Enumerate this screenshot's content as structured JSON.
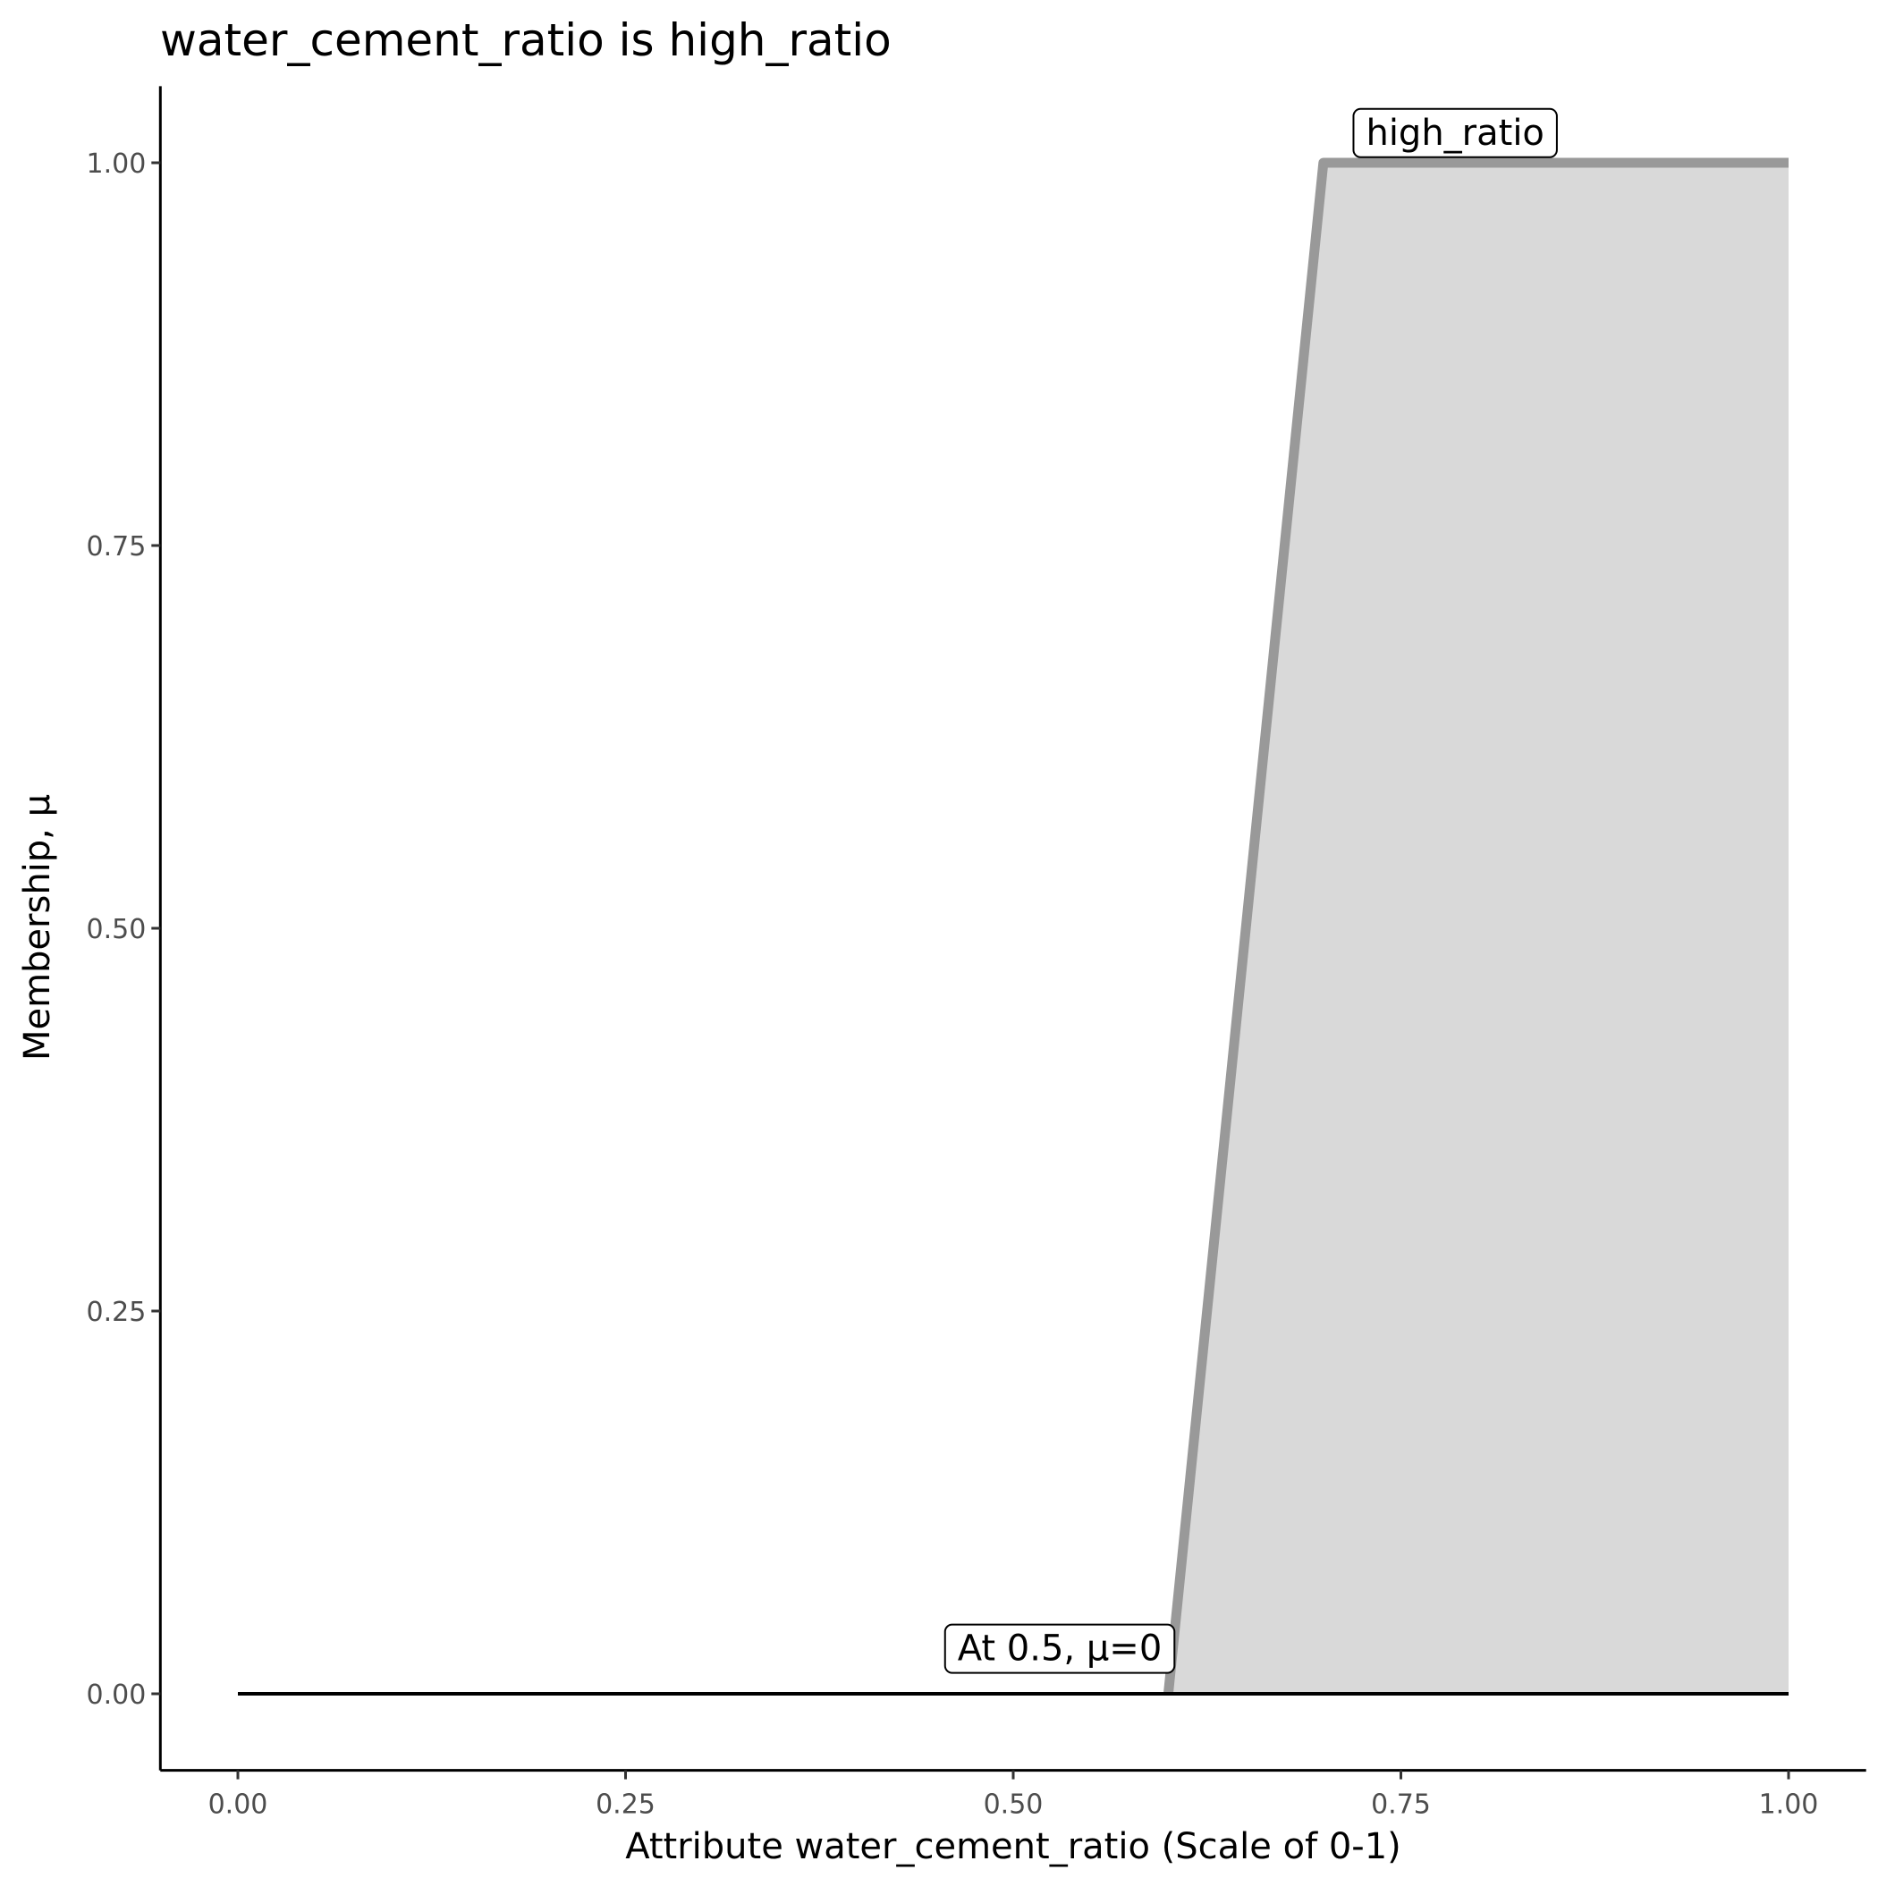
{
  "chart_data": {
    "type": "area",
    "title": "water_cement_ratio is high_ratio",
    "xlabel": "Attribute water_cement_ratio (Scale of 0-1)",
    "ylabel": "Membership, μ",
    "xlim": [
      -0.05,
      1.05
    ],
    "ylim": [
      -0.05,
      1.05
    ],
    "x_ticks": [
      0,
      0.25,
      0.5,
      0.75,
      1
    ],
    "x_tick_labels": [
      "0.00",
      "0.25",
      "0.50",
      "0.75",
      "1.00"
    ],
    "y_ticks": [
      0,
      0.25,
      0.5,
      0.75,
      1
    ],
    "y_tick_labels": [
      "0.00",
      "0.25",
      "0.50",
      "0.75",
      "1.00"
    ],
    "grid": false,
    "series": [
      {
        "name": "high_ratio",
        "x": [
          0.6,
          0.7,
          1.0
        ],
        "y": [
          0,
          1,
          1
        ],
        "line_color": "#999999",
        "fill_color": "#d9d9d9"
      }
    ],
    "baseline": {
      "x": [
        0,
        1
      ],
      "y": [
        0,
        0
      ],
      "color": "#000000"
    },
    "annotations": [
      {
        "text": "high_ratio",
        "x": 0.785,
        "y": 1.02
      },
      {
        "text": "At 0.5, μ=0",
        "x": 0.53,
        "y": 0.03
      }
    ]
  }
}
